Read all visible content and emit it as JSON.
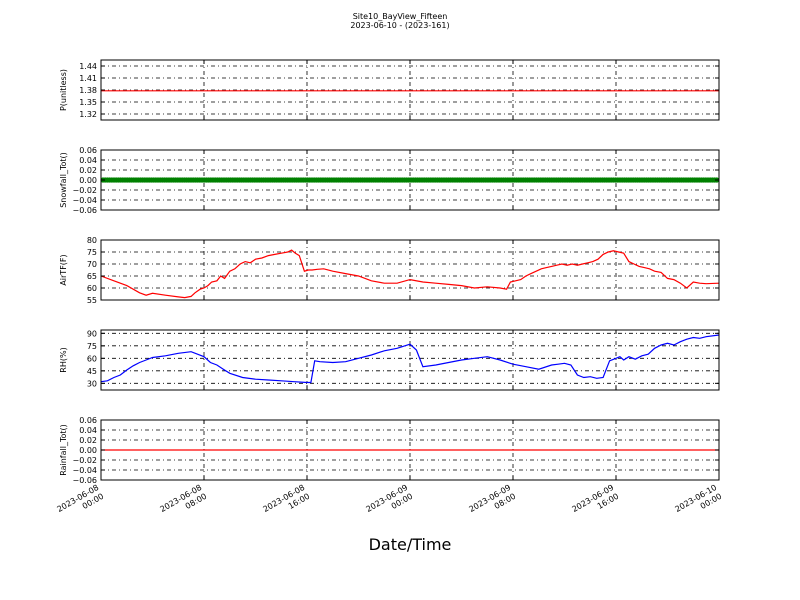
{
  "title": "Site10_BayView_Fifteen",
  "subtitle": "2023-06-10 - (2023-161)",
  "xlabel": "Date/Time",
  "x_tick_labels": [
    [
      "2023-06-08",
      "00:00"
    ],
    [
      "2023-06-08",
      "08:00"
    ],
    [
      "2023-06-08",
      "16:00"
    ],
    [
      "2023-06-09",
      "00:00"
    ],
    [
      "2023-06-09",
      "08:00"
    ],
    [
      "2023-06-09",
      "16:00"
    ],
    [
      "2023-06-10",
      "00:00"
    ]
  ],
  "colors": {
    "red": "#ff0000",
    "green": "#008000",
    "blue": "#0000ff"
  },
  "chart_data": [
    {
      "type": "line",
      "ylabel": "P(unitless)",
      "ylim": [
        1.305,
        1.455
      ],
      "yticks": [
        1.32,
        1.35,
        1.38,
        1.41,
        1.44
      ],
      "ytick_labels": [
        "1.32",
        "1.35",
        "1.38",
        "1.41",
        "1.44"
      ],
      "xlim": [
        0,
        48
      ],
      "grid": true,
      "series": [
        {
          "color": "#ff0000",
          "x": [
            0,
            48
          ],
          "y": [
            1.378,
            1.378
          ]
        }
      ]
    },
    {
      "type": "line",
      "ylabel": "Snowfall_Tot()",
      "ylim": [
        -0.06,
        0.06
      ],
      "yticks": [
        -0.06,
        -0.04,
        -0.02,
        0.0,
        0.02,
        0.04,
        0.06
      ],
      "ytick_labels": [
        "−0.06",
        "−0.04",
        "−0.02",
        "0.00",
        "0.02",
        "0.04",
        "0.06"
      ],
      "xlim": [
        0,
        48
      ],
      "grid": true,
      "series": [
        {
          "color": "#008000",
          "markers": true,
          "x": [
            0,
            48
          ],
          "y": [
            0,
            0
          ]
        }
      ]
    },
    {
      "type": "line",
      "ylabel": "AirTF(F)",
      "ylim": [
        55,
        80
      ],
      "yticks": [
        55,
        60,
        65,
        70,
        75,
        80
      ],
      "ytick_labels": [
        "55",
        "60",
        "65",
        "70",
        "75",
        "80"
      ],
      "xlim": [
        0,
        48
      ],
      "grid": true,
      "series": [
        {
          "color": "#ff0000",
          "x": [
            0,
            1,
            2,
            3,
            3.5,
            4,
            5,
            6,
            6.5,
            7,
            7.3,
            7.7,
            8,
            8.3,
            8.6,
            9,
            9.3,
            9.6,
            10,
            10.4,
            10.8,
            11.2,
            11.6,
            12,
            12.5,
            13,
            13.5,
            14,
            14.5,
            14.8,
            15.1,
            15.4,
            15.8,
            16.1,
            16.4,
            16.8,
            17.3,
            18,
            19,
            20,
            21,
            22,
            23,
            24,
            25,
            26,
            27,
            28,
            29,
            30,
            31,
            31.5,
            31.8,
            32.2,
            32.6,
            33,
            33.4,
            33.8,
            34.2,
            34.6,
            35,
            35.4,
            35.8,
            36.2,
            36.6,
            37,
            37.4,
            37.8,
            38.2,
            38.6,
            39,
            39.4,
            39.8,
            40.2,
            40.6,
            41,
            41.4,
            41.8,
            42.2,
            42.6,
            43,
            43.5,
            44,
            44.5,
            45,
            45.5,
            46,
            46.5,
            47,
            48
          ],
          "y": [
            65,
            63,
            61,
            58,
            57,
            57.8,
            57,
            56.3,
            56,
            56.5,
            58,
            59.5,
            60,
            61,
            62.5,
            63,
            65,
            64,
            67,
            68,
            70,
            71,
            70.5,
            72,
            72.5,
            73.5,
            74,
            74.5,
            75,
            75.8,
            74.5,
            73.5,
            67,
            67.5,
            67.5,
            67.8,
            68,
            67,
            66,
            65,
            63,
            62,
            62,
            63.5,
            62.5,
            62,
            61.5,
            61,
            60,
            60.5,
            60,
            59.5,
            62.5,
            63,
            63.5,
            65,
            66,
            67,
            68,
            68.5,
            69,
            69.5,
            70,
            69.5,
            70,
            69.5,
            70,
            70.5,
            71,
            72,
            74,
            75,
            75.5,
            75,
            74.5,
            71,
            70,
            69,
            68.5,
            68,
            67,
            66.5,
            64,
            63.5,
            62,
            60,
            62.5,
            62,
            61.8,
            62
          ]
        }
      ]
    },
    {
      "type": "line",
      "ylabel": "RH(%)",
      "ylim": [
        22,
        94
      ],
      "yticks": [
        30,
        45,
        60,
        75,
        90
      ],
      "ytick_labels": [
        "30",
        "45",
        "60",
        "75",
        "90"
      ],
      "xlim": [
        0,
        48
      ],
      "grid": true,
      "series": [
        {
          "color": "#0000ff",
          "x": [
            0,
            0.5,
            1,
            1.5,
            2,
            2.5,
            3,
            3.5,
            4,
            5,
            6,
            7,
            8,
            8.5,
            9,
            9.5,
            10,
            11,
            12,
            13,
            14,
            15,
            16,
            16.3,
            16.6,
            17,
            18,
            19,
            20,
            21,
            22,
            23,
            24,
            24.5,
            25,
            26,
            27,
            28,
            29,
            30,
            31,
            32,
            33,
            34,
            35,
            35.5,
            36,
            36.5,
            37,
            37.5,
            38,
            38.5,
            39,
            39.5,
            40,
            40.3,
            40.6,
            41,
            41.5,
            42,
            42.5,
            43,
            43.5,
            44,
            44.5,
            45,
            45.5,
            46,
            46.5,
            47,
            48
          ],
          "y": [
            32,
            33,
            37,
            40,
            46,
            51,
            55,
            58,
            61,
            63,
            66,
            68,
            62,
            55,
            52,
            47,
            42,
            37,
            35,
            34,
            33,
            32,
            31,
            31,
            57,
            56,
            55,
            56,
            60,
            64,
            69,
            72,
            77,
            70,
            50,
            52,
            55,
            58,
            60,
            62,
            58,
            53,
            50,
            47,
            52,
            53,
            54,
            52,
            40,
            37,
            38,
            36,
            37,
            57,
            60,
            62,
            58,
            62,
            59,
            63,
            65,
            72,
            76,
            78,
            76,
            80,
            83,
            85,
            84,
            86,
            88
          ]
        }
      ]
    },
    {
      "type": "line",
      "ylabel": "Rainfall_Tot()",
      "ylim": [
        -0.06,
        0.06
      ],
      "yticks": [
        -0.06,
        -0.04,
        -0.02,
        0.0,
        0.02,
        0.04,
        0.06
      ],
      "ytick_labels": [
        "−0.06",
        "−0.04",
        "−0.02",
        "0.00",
        "0.02",
        "0.04",
        "0.06"
      ],
      "xlim": [
        0,
        48
      ],
      "grid": true,
      "series": [
        {
          "color": "#ff0000",
          "x": [
            0,
            48
          ],
          "y": [
            0,
            0
          ]
        }
      ]
    }
  ]
}
